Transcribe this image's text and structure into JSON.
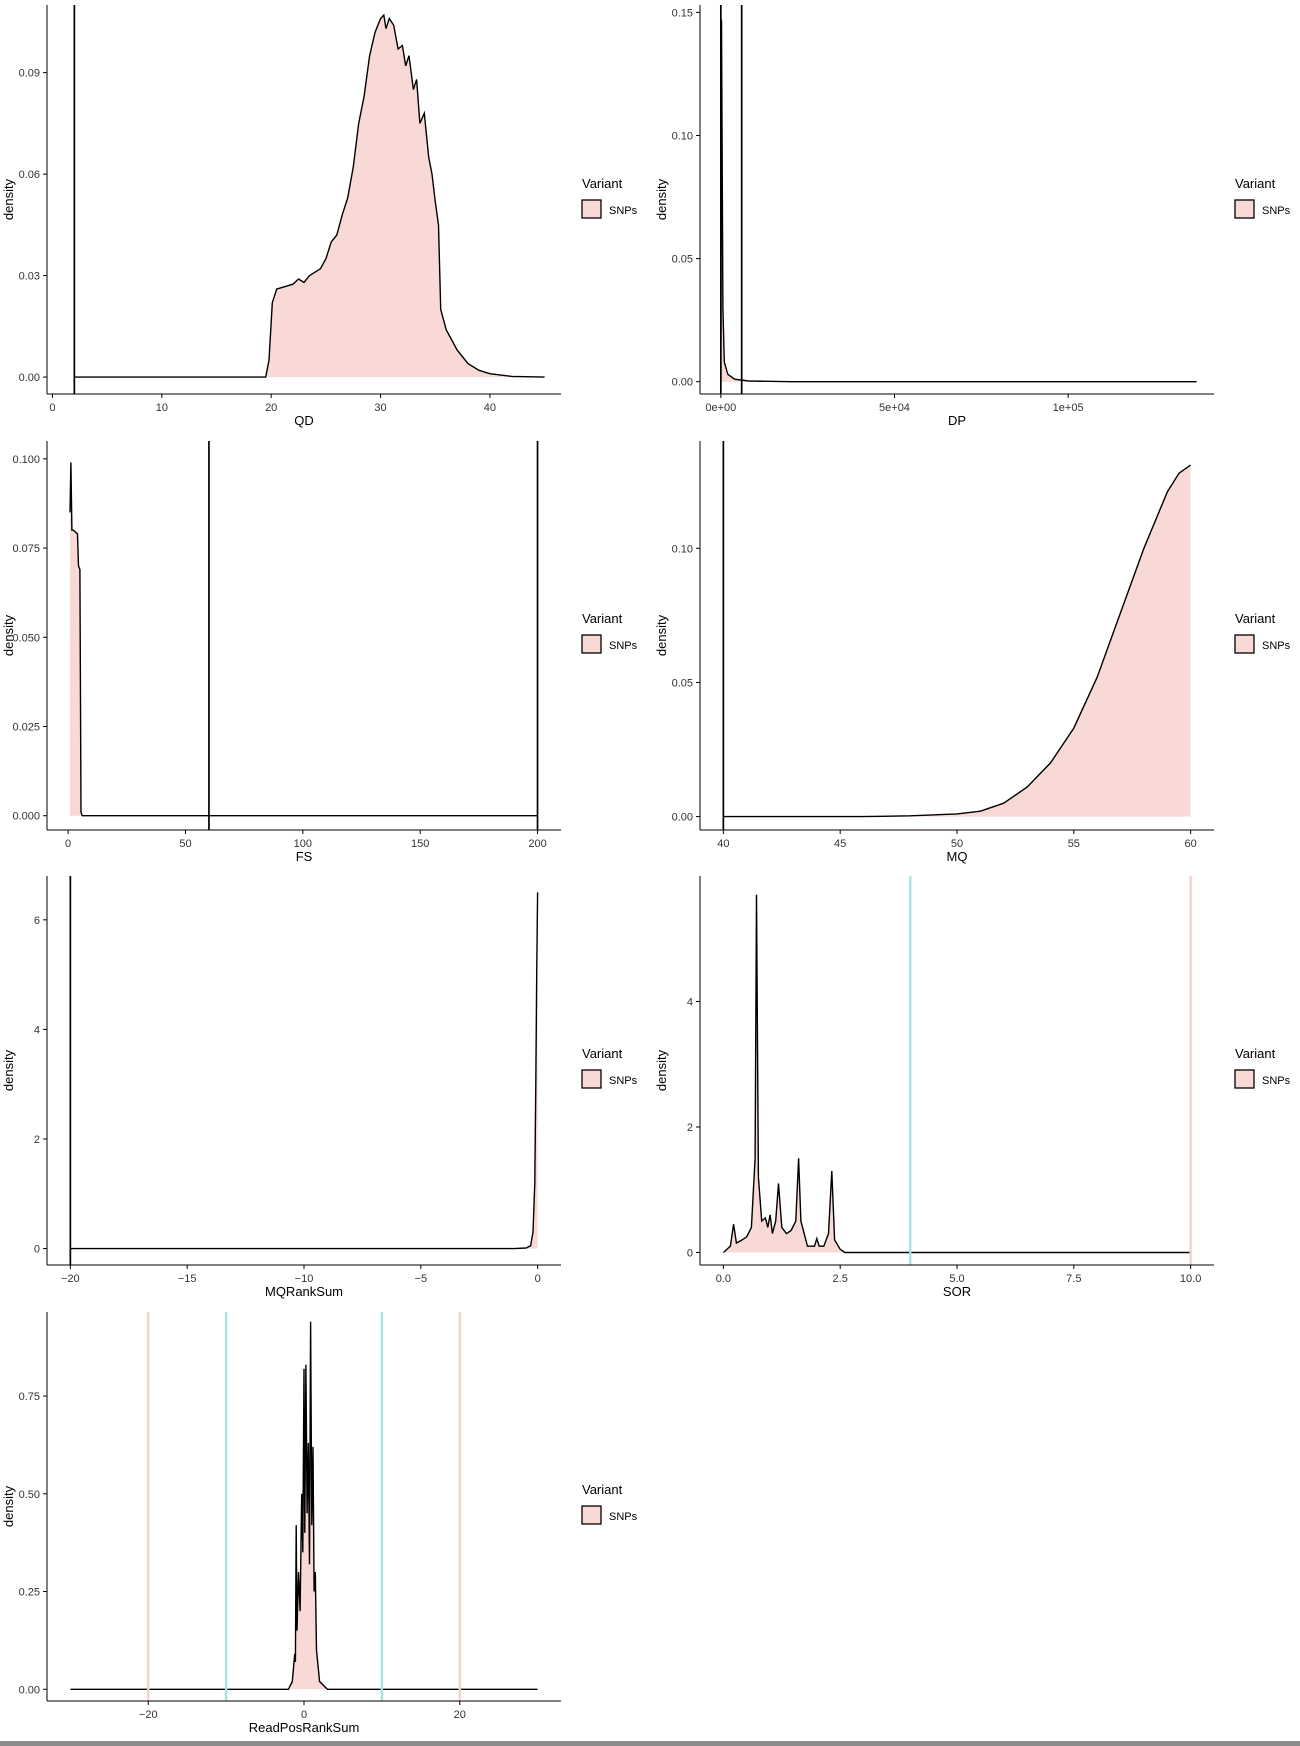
{
  "legend": {
    "title": "Variant",
    "label": "SNPs",
    "fill": "#f8d9d5",
    "stroke": "#000000"
  },
  "colors": {
    "fill": "#f8d9d5",
    "line": "#000000",
    "red_vline": "#f4cfcb",
    "cyan_vline": "#a7e3e3"
  },
  "chart_data": [
    {
      "type": "area",
      "id": "qd",
      "xlabel": "QD",
      "ylabel": "density",
      "xlim": [
        -0.5,
        46.5
      ],
      "ylim": [
        -0.005,
        0.11
      ],
      "xticks": [
        0,
        10,
        20,
        30,
        40
      ],
      "xtick_labels": [
        "0",
        "10",
        "20",
        "30",
        "40"
      ],
      "yticks": [
        0,
        0.03,
        0.06,
        0.09
      ],
      "ytick_labels": [
        "0.00",
        "0.03",
        "0.06",
        "0.09"
      ],
      "series": [
        {
          "name": "SNPs",
          "points": [
            [
              2,
              0
            ],
            [
              19.5,
              0
            ],
            [
              19.8,
              0.005
            ],
            [
              20.1,
              0.022
            ],
            [
              20.5,
              0.026
            ],
            [
              21,
              0.0265
            ],
            [
              21.5,
              0.027
            ],
            [
              22,
              0.0275
            ],
            [
              22.5,
              0.029
            ],
            [
              23,
              0.028
            ],
            [
              23.5,
              0.03
            ],
            [
              24,
              0.031
            ],
            [
              24.5,
              0.032
            ],
            [
              25,
              0.035
            ],
            [
              25.5,
              0.04
            ],
            [
              26,
              0.042
            ],
            [
              26.5,
              0.048
            ],
            [
              27,
              0.053
            ],
            [
              27.5,
              0.062
            ],
            [
              28,
              0.075
            ],
            [
              28.5,
              0.083
            ],
            [
              29,
              0.095
            ],
            [
              29.5,
              0.102
            ],
            [
              30,
              0.106
            ],
            [
              30.3,
              0.107
            ],
            [
              30.5,
              0.103
            ],
            [
              30.8,
              0.106
            ],
            [
              31.2,
              0.104
            ],
            [
              31.6,
              0.097
            ],
            [
              32,
              0.098
            ],
            [
              32.3,
              0.092
            ],
            [
              32.6,
              0.095
            ],
            [
              33,
              0.085
            ],
            [
              33.3,
              0.088
            ],
            [
              33.6,
              0.075
            ],
            [
              34,
              0.078
            ],
            [
              34.4,
              0.065
            ],
            [
              34.7,
              0.06
            ],
            [
              35,
              0.052
            ],
            [
              35.3,
              0.045
            ],
            [
              35.5,
              0.02
            ],
            [
              36,
              0.014
            ],
            [
              37,
              0.008
            ],
            [
              38,
              0.004
            ],
            [
              39,
              0.002
            ],
            [
              40,
              0.001
            ],
            [
              42,
              0.0002
            ],
            [
              45,
              0
            ]
          ]
        }
      ],
      "vlines": [
        {
          "x": 2,
          "color": "black"
        }
      ]
    },
    {
      "type": "area",
      "id": "dp",
      "xlabel": "DP",
      "ylabel": "density",
      "xlim": [
        -6000,
        142000
      ],
      "ylim": [
        -0.005,
        0.153
      ],
      "xticks": [
        0,
        50000,
        100000
      ],
      "xtick_labels": [
        "0e+00",
        "5e+04",
        "1e+05"
      ],
      "yticks": [
        0,
        0.05,
        0.1,
        0.15
      ],
      "ytick_labels": [
        "0.00",
        "0.05",
        "0.10",
        "0.15"
      ],
      "series": [
        {
          "name": "SNPs",
          "points": [
            [
              0,
              0
            ],
            [
              200,
              0.147
            ],
            [
              600,
              0.03
            ],
            [
              1000,
              0.008
            ],
            [
              2000,
              0.003
            ],
            [
              4000,
              0.001
            ],
            [
              8000,
              0.0003
            ],
            [
              20000,
              0
            ],
            [
              137000,
              0
            ]
          ]
        }
      ],
      "vlines": [
        {
          "x": 0,
          "color": "black"
        },
        {
          "x": 6000,
          "color": "black"
        }
      ]
    },
    {
      "type": "area",
      "id": "fs",
      "xlabel": "FS",
      "ylabel": "density",
      "xlim": [
        -9,
        210
      ],
      "ylim": [
        -0.004,
        0.105
      ],
      "xticks": [
        0,
        50,
        100,
        150,
        200
      ],
      "xtick_labels": [
        "0",
        "50",
        "100",
        "150",
        "200"
      ],
      "yticks": [
        0,
        0.025,
        0.05,
        0.075,
        0.1
      ],
      "ytick_labels": [
        "0.000",
        "0.025",
        "0.050",
        "0.075",
        "0.100"
      ],
      "series": [
        {
          "name": "SNPs",
          "points": [
            [
              0.8,
              0.085
            ],
            [
              1.2,
              0.099
            ],
            [
              1.6,
              0.08
            ],
            [
              2.2,
              0.08
            ],
            [
              4,
              0.079
            ],
            [
              4.4,
              0.07
            ],
            [
              5,
              0.069
            ],
            [
              5.5,
              0.001
            ],
            [
              6,
              0
            ],
            [
              200,
              0
            ]
          ]
        }
      ],
      "vlines": [
        {
          "x": 60,
          "color": "black"
        },
        {
          "x": 200,
          "color": "black"
        }
      ]
    },
    {
      "type": "area",
      "id": "mq",
      "xlabel": "MQ",
      "ylabel": "density",
      "xlim": [
        39,
        61
      ],
      "ylim": [
        -0.005,
        0.14
      ],
      "xticks": [
        40,
        45,
        50,
        55,
        60
      ],
      "xtick_labels": [
        "40",
        "45",
        "50",
        "55",
        "60"
      ],
      "yticks": [
        0,
        0.05,
        0.1
      ],
      "ytick_labels": [
        "0.00",
        "0.05",
        "0.10"
      ],
      "series": [
        {
          "name": "SNPs",
          "points": [
            [
              40,
              0
            ],
            [
              46,
              0
            ],
            [
              48,
              0.0003
            ],
            [
              50,
              0.001
            ],
            [
              51,
              0.002
            ],
            [
              52,
              0.005
            ],
            [
              53,
              0.011
            ],
            [
              54,
              0.02
            ],
            [
              55,
              0.033
            ],
            [
              56,
              0.052
            ],
            [
              57,
              0.076
            ],
            [
              58,
              0.1
            ],
            [
              59,
              0.121
            ],
            [
              59.5,
              0.128
            ],
            [
              60,
              0.131
            ]
          ]
        }
      ],
      "vlines": [
        {
          "x": 40,
          "color": "black"
        }
      ]
    },
    {
      "type": "area",
      "id": "mqranksum",
      "xlabel": "MQRankSum",
      "ylabel": "density",
      "xlim": [
        -21,
        1
      ],
      "ylim": [
        -0.3,
        6.8
      ],
      "xticks": [
        -20,
        -15,
        -10,
        -5,
        0
      ],
      "xtick_labels": [
        "−20",
        "−15",
        "−10",
        "−5",
        "0"
      ],
      "yticks": [
        0,
        2,
        4,
        6
      ],
      "ytick_labels": [
        "0",
        "2",
        "4",
        "6"
      ],
      "series": [
        {
          "name": "SNPs",
          "points": [
            [
              -20,
              0
            ],
            [
              -1,
              0
            ],
            [
              -0.5,
              0.01
            ],
            [
              -0.3,
              0.05
            ],
            [
              -0.2,
              0.3
            ],
            [
              -0.12,
              1.2
            ],
            [
              -0.08,
              3
            ],
            [
              -0.04,
              5
            ],
            [
              0,
              6.5
            ]
          ]
        }
      ],
      "vlines": [
        {
          "x": -20,
          "color": "black"
        }
      ]
    },
    {
      "type": "area",
      "id": "sor",
      "xlabel": "SOR",
      "ylabel": "density",
      "xlim": [
        -0.5,
        10.5
      ],
      "ylim": [
        -0.2,
        6
      ],
      "xticks": [
        0,
        2.5,
        5,
        7.5,
        10
      ],
      "xtick_labels": [
        "0.0",
        "2.5",
        "5.0",
        "7.5",
        "10.0"
      ],
      "yticks": [
        0,
        2,
        4
      ],
      "ytick_labels": [
        "0",
        "2",
        "4"
      ],
      "series": [
        {
          "name": "SNPs",
          "points": [
            [
              0,
              0
            ],
            [
              0.15,
              0.1
            ],
            [
              0.22,
              0.45
            ],
            [
              0.28,
              0.15
            ],
            [
              0.4,
              0.2
            ],
            [
              0.5,
              0.25
            ],
            [
              0.6,
              0.4
            ],
            [
              0.68,
              1.5
            ],
            [
              0.71,
              5.7
            ],
            [
              0.75,
              1.2
            ],
            [
              0.82,
              0.5
            ],
            [
              0.9,
              0.55
            ],
            [
              0.95,
              0.4
            ],
            [
              1.0,
              0.6
            ],
            [
              1.05,
              0.3
            ],
            [
              1.12,
              0.5
            ],
            [
              1.18,
              1.1
            ],
            [
              1.25,
              0.4
            ],
            [
              1.35,
              0.3
            ],
            [
              1.45,
              0.35
            ],
            [
              1.55,
              0.5
            ],
            [
              1.61,
              1.5
            ],
            [
              1.66,
              0.5
            ],
            [
              1.8,
              0.1
            ],
            [
              1.95,
              0.1
            ],
            [
              2.0,
              0.22
            ],
            [
              2.05,
              0.1
            ],
            [
              2.15,
              0.1
            ],
            [
              2.25,
              0.3
            ],
            [
              2.32,
              1.3
            ],
            [
              2.38,
              0.2
            ],
            [
              2.5,
              0.05
            ],
            [
              2.6,
              0
            ],
            [
              10,
              0
            ]
          ]
        }
      ],
      "vlines": [
        {
          "x": 4,
          "color": "cyan"
        },
        {
          "x": 10,
          "color": "red"
        }
      ]
    },
    {
      "type": "area",
      "id": "readposranksum",
      "xlabel": "ReadPosRankSum",
      "ylabel": "density",
      "xlim": [
        -33,
        33
      ],
      "ylim": [
        -0.03,
        0.965
      ],
      "xticks": [
        -20,
        0,
        20
      ],
      "xtick_labels": [
        "−20",
        "0",
        "20"
      ],
      "yticks": [
        0,
        0.25,
        0.5,
        0.75
      ],
      "ytick_labels": [
        "0.00",
        "0.25",
        "0.50",
        "0.75"
      ],
      "series": [
        {
          "name": "SNPs",
          "points": [
            [
              -30,
              0
            ],
            [
              -2,
              0
            ],
            [
              -1.5,
              0.02
            ],
            [
              -1.2,
              0.09
            ],
            [
              -1.1,
              0.07
            ],
            [
              -1.0,
              0.42
            ],
            [
              -0.9,
              0.15
            ],
            [
              -0.7,
              0.3
            ],
            [
              -0.5,
              0.2
            ],
            [
              -0.3,
              0.5
            ],
            [
              -0.15,
              0.35
            ],
            [
              0,
              0.82
            ],
            [
              0.1,
              0.4
            ],
            [
              0.25,
              0.83
            ],
            [
              0.4,
              0.45
            ],
            [
              0.55,
              0.63
            ],
            [
              0.7,
              0.32
            ],
            [
              0.85,
              0.94
            ],
            [
              1.0,
              0.42
            ],
            [
              1.15,
              0.62
            ],
            [
              1.3,
              0.25
            ],
            [
              1.45,
              0.3
            ],
            [
              1.6,
              0.1
            ],
            [
              2,
              0.02
            ],
            [
              3,
              0
            ],
            [
              30,
              0
            ]
          ]
        }
      ],
      "vlines": [
        {
          "x": -20,
          "color": "red"
        },
        {
          "x": -10,
          "color": "cyan"
        },
        {
          "x": 10,
          "color": "cyan"
        },
        {
          "x": 20,
          "color": "red"
        }
      ]
    }
  ]
}
